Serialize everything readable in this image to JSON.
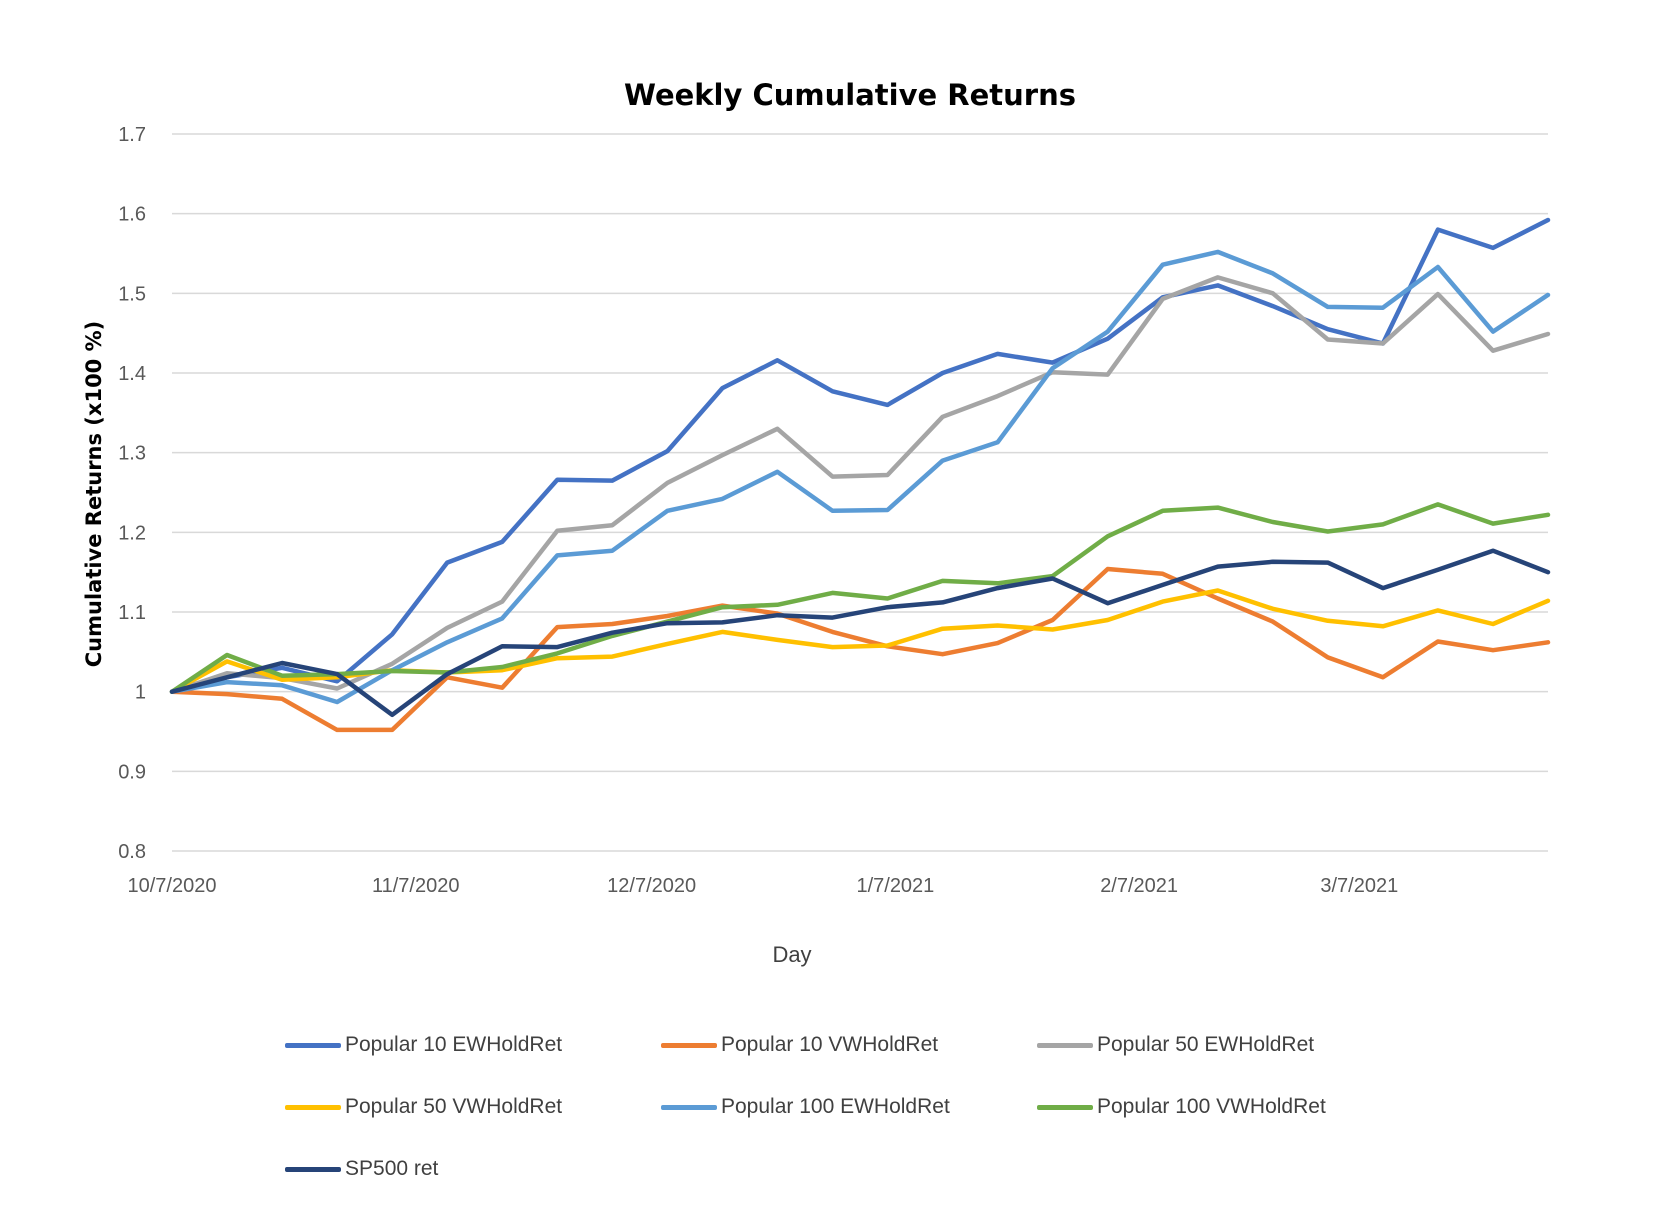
{
  "chart_data": {
    "type": "line",
    "title": "Weekly Cumulative Returns",
    "xlabel": "Day",
    "ylabel": "Cumulative Returns (x100 %)",
    "ylim": [
      0.8,
      1.7
    ],
    "yticks": [
      "0.8",
      "0.9",
      "1",
      "1.1",
      "1.2",
      "1.3",
      "1.4",
      "1.5",
      "1.6",
      "1.7"
    ],
    "xticks": [
      {
        "date": "2020-10-07",
        "label": "10/7/2020"
      },
      {
        "date": "2020-11-07",
        "label": "11/7/2020"
      },
      {
        "date": "2020-12-07",
        "label": "12/7/2020"
      },
      {
        "date": "2021-01-07",
        "label": "1/7/2021"
      },
      {
        "date": "2021-02-07",
        "label": "2/7/2021"
      },
      {
        "date": "2021-03-07",
        "label": "3/7/2021"
      }
    ],
    "x": [
      "2020-10-07",
      "2020-10-14",
      "2020-10-21",
      "2020-10-28",
      "2020-11-04",
      "2020-11-11",
      "2020-11-18",
      "2020-11-25",
      "2020-12-02",
      "2020-12-09",
      "2020-12-16",
      "2020-12-23",
      "2020-12-30",
      "2021-01-06",
      "2021-01-13",
      "2021-01-20",
      "2021-01-27",
      "2021-02-03",
      "2021-02-10",
      "2021-02-17",
      "2021-02-24",
      "2021-03-03",
      "2021-03-10",
      "2021-03-17",
      "2021-03-24",
      "2021-03-31"
    ],
    "grid": true,
    "legend_position": "bottom",
    "series": [
      {
        "name": "Popular 10 EWHoldRet",
        "color": "#4472c4",
        "values": [
          1.0,
          1.018,
          1.03,
          1.013,
          1.072,
          1.162,
          1.188,
          1.266,
          1.265,
          1.302,
          1.381,
          1.416,
          1.377,
          1.36,
          1.4,
          1.424,
          1.413,
          1.443,
          1.495,
          1.51,
          1.484,
          1.455,
          1.437,
          1.58,
          1.557,
          1.592
        ]
      },
      {
        "name": "Popular 10 VWHoldRet",
        "color": "#ed7d31",
        "values": [
          1.0,
          0.997,
          0.991,
          0.952,
          0.952,
          1.018,
          1.005,
          1.081,
          1.085,
          1.095,
          1.108,
          1.098,
          1.075,
          1.057,
          1.047,
          1.061,
          1.09,
          1.154,
          1.148,
          1.117,
          1.088,
          1.043,
          1.018,
          1.063,
          1.052,
          1.062
        ]
      },
      {
        "name": "Popular 50 EWHoldRet",
        "color": "#a5a5a5",
        "values": [
          1.0,
          1.023,
          1.017,
          1.004,
          1.035,
          1.08,
          1.113,
          1.202,
          1.209,
          1.262,
          1.297,
          1.33,
          1.27,
          1.272,
          1.345,
          1.371,
          1.401,
          1.398,
          1.493,
          1.52,
          1.5,
          1.442,
          1.437,
          1.499,
          1.428,
          1.449
        ]
      },
      {
        "name": "Popular 50 VWHoldRet",
        "color": "#ffc000",
        "values": [
          1.0,
          1.038,
          1.015,
          1.018,
          1.027,
          1.024,
          1.027,
          1.042,
          1.044,
          1.06,
          1.075,
          1.065,
          1.056,
          1.058,
          1.079,
          1.083,
          1.078,
          1.09,
          1.113,
          1.127,
          1.104,
          1.089,
          1.082,
          1.102,
          1.085,
          1.114
        ]
      },
      {
        "name": "Popular 100 EWHoldRet",
        "color": "#5b9bd5",
        "values": [
          1.0,
          1.012,
          1.008,
          0.987,
          1.027,
          1.062,
          1.092,
          1.171,
          1.177,
          1.227,
          1.242,
          1.276,
          1.227,
          1.228,
          1.29,
          1.313,
          1.406,
          1.452,
          1.536,
          1.552,
          1.525,
          1.483,
          1.482,
          1.533,
          1.452,
          1.498
        ]
      },
      {
        "name": "Popular 100 VWHoldRet",
        "color": "#70ad47",
        "values": [
          1.0,
          1.046,
          1.02,
          1.022,
          1.026,
          1.024,
          1.031,
          1.048,
          1.07,
          1.088,
          1.106,
          1.109,
          1.124,
          1.117,
          1.139,
          1.136,
          1.145,
          1.195,
          1.227,
          1.231,
          1.213,
          1.201,
          1.21,
          1.235,
          1.211,
          1.222
        ]
      },
      {
        "name": "SP500 ret",
        "color": "#264478",
        "values": [
          1.0,
          1.018,
          1.036,
          1.022,
          0.971,
          1.022,
          1.057,
          1.056,
          1.074,
          1.086,
          1.087,
          1.096,
          1.093,
          1.106,
          1.112,
          1.13,
          1.142,
          1.111,
          1.134,
          1.157,
          1.163,
          1.162,
          1.13,
          1.153,
          1.177,
          1.15
        ]
      }
    ]
  }
}
